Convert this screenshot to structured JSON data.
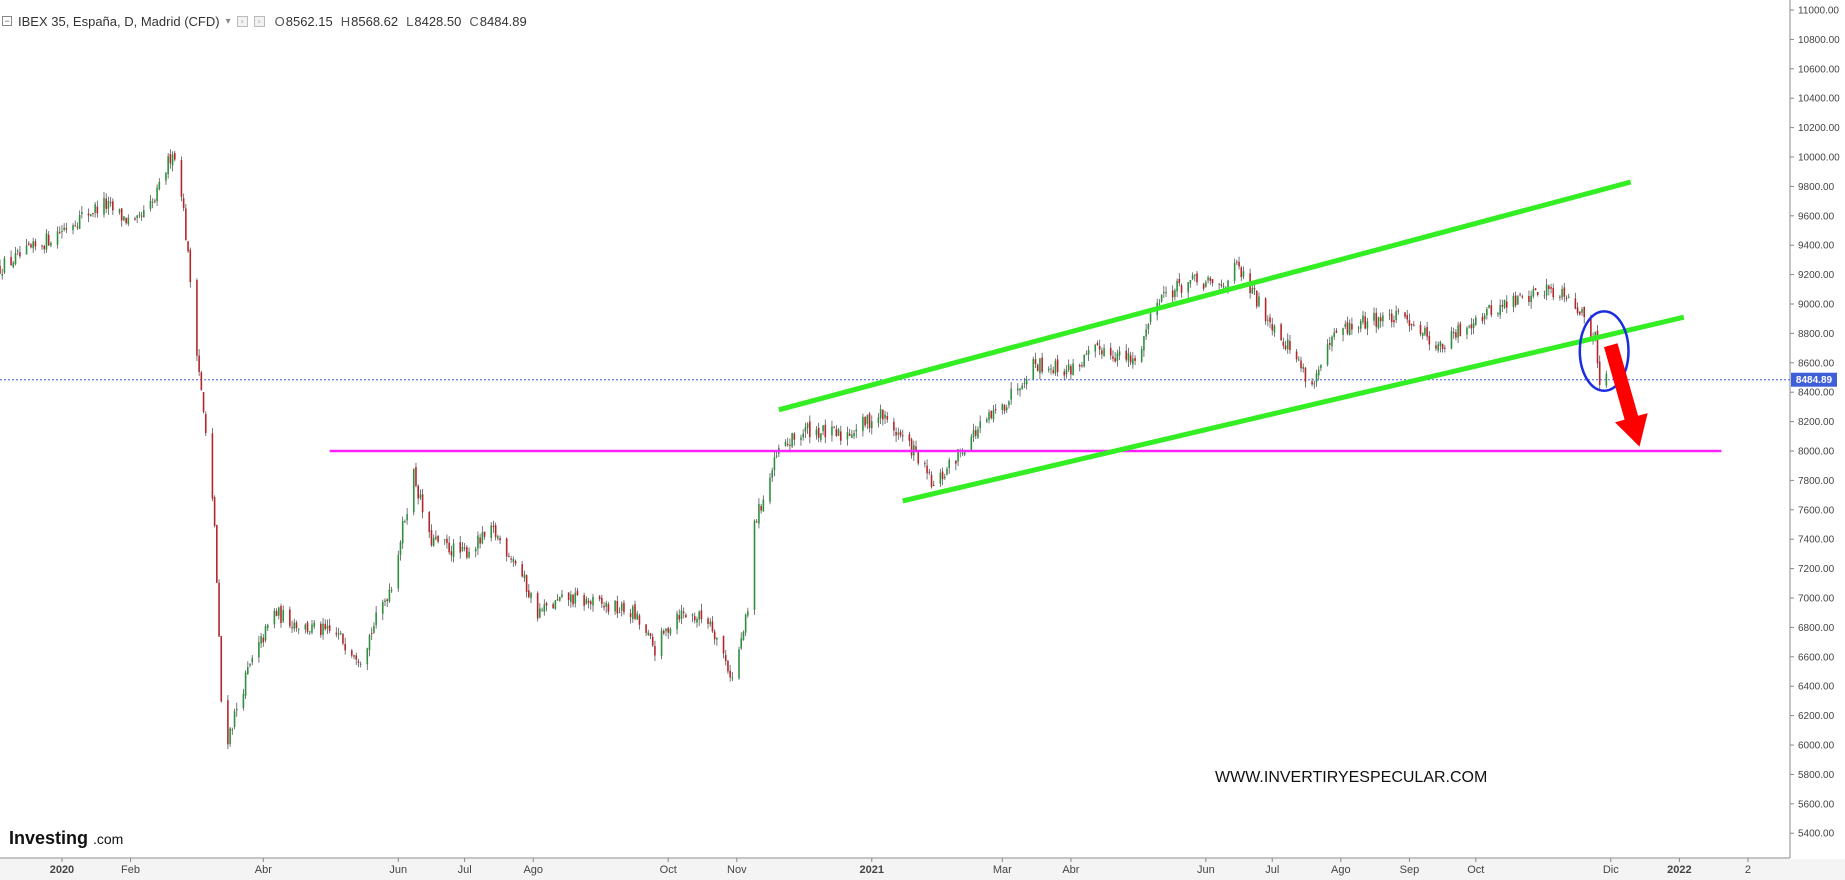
{
  "header": {
    "collapse_icon": "minus-box-icon",
    "title": "IBEX 35, España, D, Madrid (CFD)",
    "ohlc": [
      {
        "key": "O",
        "value": "8562.15"
      },
      {
        "key": "H",
        "value": "8568.62"
      },
      {
        "key": "L",
        "value": "8428.50"
      },
      {
        "key": "C",
        "value": "8484.89"
      }
    ]
  },
  "branding": {
    "watermark": "WWW.INVERTIRYESPECULAR.COM",
    "logo_main": "Investing",
    "logo_sub": ".com"
  },
  "chart_data": {
    "type": "candlestick",
    "instrument": "IBEX 35, España, D, Madrid (CFD)",
    "ylim": [
      5200,
      11000
    ],
    "y_ticks": [
      "11000.00",
      "10800.00",
      "10600.00",
      "10400.00",
      "10200.00",
      "10000.00",
      "9800.00",
      "9600.00",
      "9400.00",
      "9200.00",
      "9000.00",
      "8800.00",
      "8600.00",
      "8400.00",
      "8200.00",
      "8000.00",
      "7800.00",
      "7600.00",
      "7400.00",
      "7200.00",
      "7000.00",
      "6800.00",
      "6600.00",
      "6400.00",
      "6200.00",
      "6000.00",
      "5800.00",
      "5600.00",
      "5400.00"
    ],
    "x_ticks": [
      {
        "label": "2020",
        "date": "2020-01-01"
      },
      {
        "label": "Feb",
        "date": "2020-02-01"
      },
      {
        "label": "Abr",
        "date": "2020-04-01"
      },
      {
        "label": "Jun",
        "date": "2020-06-01"
      },
      {
        "label": "Jul",
        "date": "2020-07-01"
      },
      {
        "label": "Ago",
        "date": "2020-08-01"
      },
      {
        "label": "Oct",
        "date": "2020-10-01"
      },
      {
        "label": "Nov",
        "date": "2020-11-01"
      },
      {
        "label": "2021",
        "date": "2021-01-01"
      },
      {
        "label": "Mar",
        "date": "2021-03-01"
      },
      {
        "label": "Abr",
        "date": "2021-04-01"
      },
      {
        "label": "Jun",
        "date": "2021-06-01"
      },
      {
        "label": "Jul",
        "date": "2021-07-01"
      },
      {
        "label": "Ago",
        "date": "2021-08-01"
      },
      {
        "label": "Sep",
        "date": "2021-09-01"
      },
      {
        "label": "Oct",
        "date": "2021-10-01"
      },
      {
        "label": "Dic",
        "date": "2021-12-01"
      },
      {
        "label": "2022",
        "date": "2022-01-01"
      },
      {
        "label": "2",
        "date": "2022-02-01"
      }
    ],
    "x_range": [
      "2019-12-04",
      "2022-02-20"
    ],
    "last_price": {
      "value": 8484.89,
      "label": "8484.89",
      "color": "#3f5fd8"
    },
    "price_path": [
      [
        "2019-12-04",
        9250
      ],
      [
        "2019-12-20",
        9380
      ],
      [
        "2020-01-06",
        9560
      ],
      [
        "2020-01-20",
        9680
      ],
      [
        "2020-02-03",
        9530
      ],
      [
        "2020-02-12",
        9700
      ],
      [
        "2020-02-20",
        10050
      ],
      [
        "2020-02-24",
        9780
      ],
      [
        "2020-03-02",
        8700
      ],
      [
        "2020-03-10",
        7500
      ],
      [
        "2020-03-13",
        6300
      ],
      [
        "2020-03-16",
        6050
      ],
      [
        "2020-03-25",
        6500
      ],
      [
        "2020-04-06",
        6900
      ],
      [
        "2020-04-20",
        6800
      ],
      [
        "2020-05-04",
        6750
      ],
      [
        "2020-05-15",
        6600
      ],
      [
        "2020-05-29",
        7100
      ],
      [
        "2020-06-08",
        7850
      ],
      [
        "2020-06-15",
        7400
      ],
      [
        "2020-06-30",
        7300
      ],
      [
        "2020-07-14",
        7450
      ],
      [
        "2020-07-24",
        7250
      ],
      [
        "2020-08-03",
        6900
      ],
      [
        "2020-08-17",
        7000
      ],
      [
        "2020-09-01",
        6950
      ],
      [
        "2020-09-15",
        6900
      ],
      [
        "2020-09-25",
        6650
      ],
      [
        "2020-10-05",
        6900
      ],
      [
        "2020-10-20",
        6850
      ],
      [
        "2020-10-30",
        6450
      ],
      [
        "2020-11-06",
        6900
      ],
      [
        "2020-11-09",
        7500
      ],
      [
        "2020-11-20",
        8000
      ],
      [
        "2020-12-03",
        8150
      ],
      [
        "2020-12-18",
        8100
      ],
      [
        "2021-01-05",
        8250
      ],
      [
        "2021-01-20",
        8000
      ],
      [
        "2021-01-29",
        7750
      ],
      [
        "2021-02-15",
        8100
      ],
      [
        "2021-03-01",
        8300
      ],
      [
        "2021-03-15",
        8600
      ],
      [
        "2021-03-31",
        8550
      ],
      [
        "2021-04-15",
        8700
      ],
      [
        "2021-04-30",
        8600
      ],
      [
        "2021-05-10",
        9050
      ],
      [
        "2021-05-25",
        9150
      ],
      [
        "2021-06-08",
        9120
      ],
      [
        "2021-06-15",
        9250
      ],
      [
        "2021-06-25",
        9000
      ],
      [
        "2021-07-09",
        8700
      ],
      [
        "2021-07-19",
        8450
      ],
      [
        "2021-07-30",
        8800
      ],
      [
        "2021-08-16",
        8900
      ],
      [
        "2021-09-01",
        8900
      ],
      [
        "2021-09-15",
        8700
      ],
      [
        "2021-09-30",
        8900
      ],
      [
        "2021-10-15",
        9000
      ],
      [
        "2021-11-01",
        9100
      ],
      [
        "2021-11-12",
        9080
      ],
      [
        "2021-11-19",
        8900
      ],
      [
        "2021-11-22",
        8780
      ],
      [
        "2021-11-24",
        8850
      ],
      [
        "2021-11-26",
        8450
      ],
      [
        "2021-11-29",
        8484.89
      ]
    ],
    "annotations": {
      "upper_channel_line": {
        "color": "#33ee22",
        "from": [
          "2020-11-20",
          8280
        ],
        "to": [
          "2021-12-10",
          9830
        ]
      },
      "lower_channel_line": {
        "color": "#33ee22",
        "from": [
          "2021-01-15",
          7660
        ],
        "to": [
          "2022-01-03",
          8910
        ]
      },
      "support_line": {
        "color": "#ff22ff",
        "from": [
          "2020-05-01",
          8000
        ],
        "to": [
          "2022-01-20",
          8000
        ]
      },
      "highlight_circle": {
        "color": "#1a2be0",
        "center": [
          "2021-11-28",
          8680
        ],
        "radius_days": 11,
        "radius_price": 270
      },
      "down_arrow": {
        "color": "#ff0000",
        "from": [
          "2021-12-01",
          8720
        ],
        "to": [
          "2021-12-14",
          8030
        ]
      }
    }
  }
}
